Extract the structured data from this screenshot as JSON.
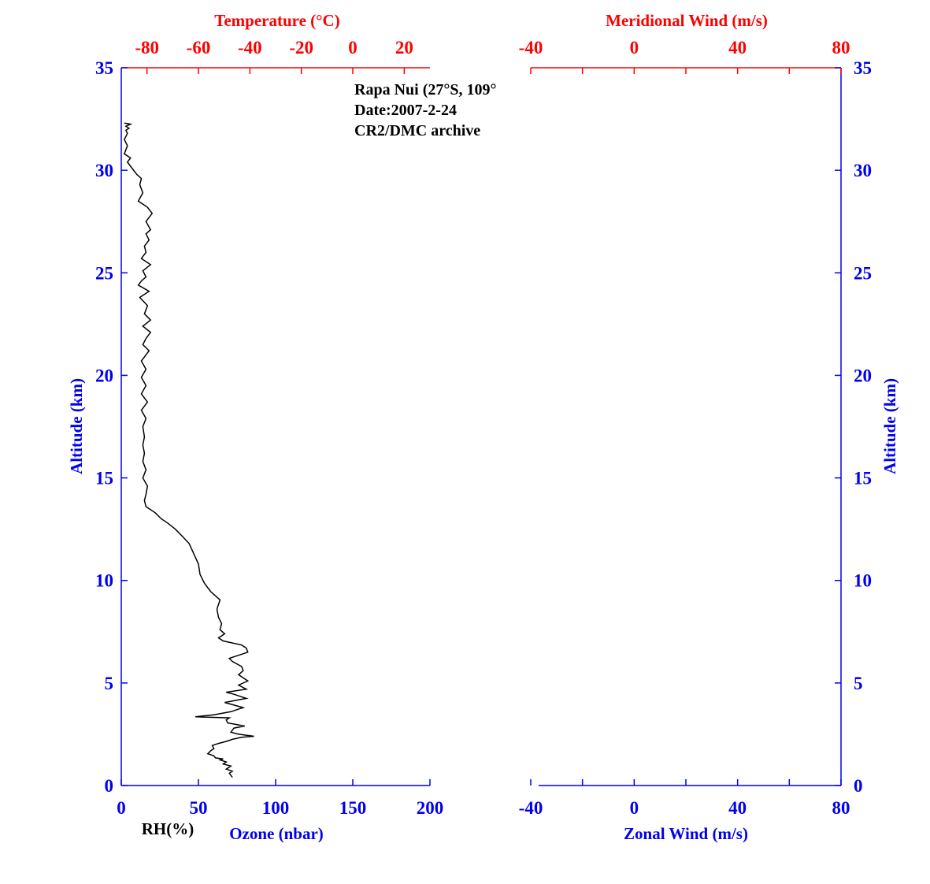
{
  "colors": {
    "altitude_axis": "#0000ee",
    "temperature_axis": "#ff0000",
    "wind_axis_top": "#ff0000",
    "wind_axis_bottom": "#0000ee",
    "profile_line": "#000000",
    "annotation_text": "#000000"
  },
  "annotation": {
    "line1": "Rapa Nui (27°S, 109°",
    "line2": "Date:2007-2-24",
    "line3": "CR2/DMC archive"
  },
  "chart_data": [
    {
      "type": "line",
      "title": "",
      "ylabel": "Altitude (km)",
      "ylim": [
        0,
        35
      ],
      "yticks": [
        "0",
        "5",
        "10",
        "15",
        "20",
        "25",
        "30",
        "35"
      ],
      "xlabel_bottom": "Ozone (nbar)",
      "xlabel_bottom_secondary": "RH(%)",
      "xlim_bottom": [
        0,
        200
      ],
      "xticks_bottom": [
        "0",
        "50",
        "100",
        "150",
        "200"
      ],
      "xlabel_top": "Temperature (°C)",
      "xlim_top": [
        -90,
        30
      ],
      "xticks_top": [
        "-80",
        "-60",
        "-40",
        "-20",
        "0",
        "20"
      ],
      "grid": false,
      "series": [
        {
          "name": "",
          "x": [
            72,
            70,
            72,
            68,
            71,
            66,
            68,
            64,
            66,
            61,
            60,
            56,
            58,
            60,
            59,
            63,
            68,
            72,
            78,
            86,
            76,
            71,
            73,
            80,
            69,
            68,
            70,
            48,
            60,
            71,
            79,
            67,
            81,
            73,
            68,
            81,
            76,
            82,
            76,
            79,
            78,
            72,
            70,
            82,
            81,
            78,
            66,
            63,
            67,
            64,
            65,
            63,
            62,
            64,
            58,
            54,
            51,
            50,
            47,
            44,
            39,
            35,
            30,
            26,
            22,
            16,
            15,
            16,
            17,
            14,
            16,
            14,
            15,
            14,
            15,
            14,
            16,
            13,
            17,
            13,
            16,
            13,
            16,
            13,
            18,
            14,
            16,
            19,
            14,
            19,
            15,
            17,
            12,
            18,
            11,
            13,
            16,
            14,
            19,
            13,
            16,
            15,
            18,
            16,
            19,
            16,
            20,
            17,
            11,
            14,
            12,
            13,
            10,
            7,
            4,
            6,
            2,
            4,
            2,
            4,
            3,
            5,
            3,
            6,
            2
          ],
          "y": [
            0.4,
            0.6,
            0.7,
            0.8,
            0.95,
            1.05,
            1.15,
            1.25,
            1.3,
            1.35,
            1.45,
            1.55,
            1.7,
            1.8,
            1.95,
            2.05,
            2.15,
            2.25,
            2.35,
            2.4,
            2.5,
            2.6,
            2.8,
            2.9,
            3.05,
            3.2,
            3.3,
            3.35,
            3.45,
            3.6,
            3.8,
            4.05,
            4.25,
            4.45,
            4.55,
            4.7,
            4.9,
            5.1,
            5.4,
            5.6,
            5.8,
            6.05,
            6.2,
            6.5,
            6.7,
            6.85,
            7.05,
            7.2,
            7.4,
            7.6,
            7.9,
            8.2,
            8.6,
            9.05,
            9.45,
            9.85,
            10.3,
            10.8,
            11.3,
            11.8,
            12.2,
            12.5,
            12.8,
            13.0,
            13.3,
            13.6,
            13.9,
            14.2,
            14.6,
            15.0,
            15.4,
            15.8,
            16.2,
            16.6,
            17.0,
            17.5,
            17.9,
            18.3,
            18.7,
            19.1,
            19.5,
            19.9,
            20.3,
            20.7,
            21.2,
            21.5,
            21.8,
            22.1,
            22.4,
            22.7,
            23.0,
            23.4,
            23.8,
            24.1,
            24.4,
            24.6,
            24.8,
            25.1,
            25.4,
            25.7,
            26.0,
            26.3,
            26.6,
            26.9,
            27.1,
            27.5,
            27.9,
            28.2,
            28.5,
            28.9,
            29.3,
            29.6,
            29.8,
            30.1,
            30.4,
            30.6,
            30.8,
            31.2,
            31.5,
            31.8,
            31.95,
            32.05,
            32.15,
            32.25,
            32.3
          ]
        }
      ]
    },
    {
      "type": "line",
      "title": "",
      "ylabel": "Altitude (km)",
      "ylim": [
        0,
        35
      ],
      "yticks": [
        "0",
        "5",
        "10",
        "15",
        "20",
        "25",
        "30",
        "35"
      ],
      "xlabel_bottom": "Zonal Wind (m/s)",
      "xlim_bottom": [
        -40,
        80
      ],
      "xticks_bottom": [
        "-40",
        "0",
        "40",
        "80"
      ],
      "xlabel_top": "Meridional Wind (m/s)",
      "xlim_top": [
        -40,
        80
      ],
      "xticks_top": [
        "-40",
        "0",
        "40",
        "80"
      ],
      "grid": false,
      "series": []
    }
  ]
}
